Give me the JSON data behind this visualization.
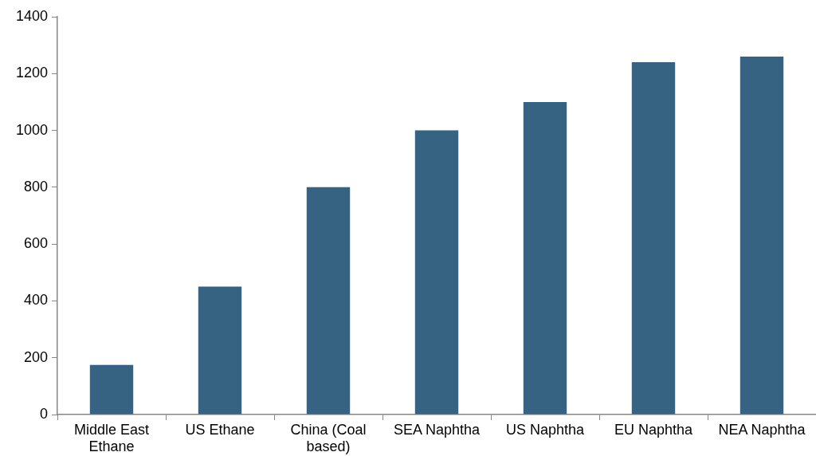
{
  "chart_data": {
    "type": "bar",
    "categories": [
      "Middle East Ethane",
      "US Ethane",
      "China (Coal based)",
      "SEA Naphtha",
      "US Naphtha",
      "EU Naphtha",
      "NEA Naphtha"
    ],
    "values": [
      175,
      450,
      800,
      1000,
      1100,
      1240,
      1260
    ],
    "color": "#366381",
    "ylim": [
      0,
      1400
    ],
    "yticks": [
      0,
      200,
      400,
      600,
      800,
      1000,
      1200,
      1400
    ],
    "grid": false
  }
}
